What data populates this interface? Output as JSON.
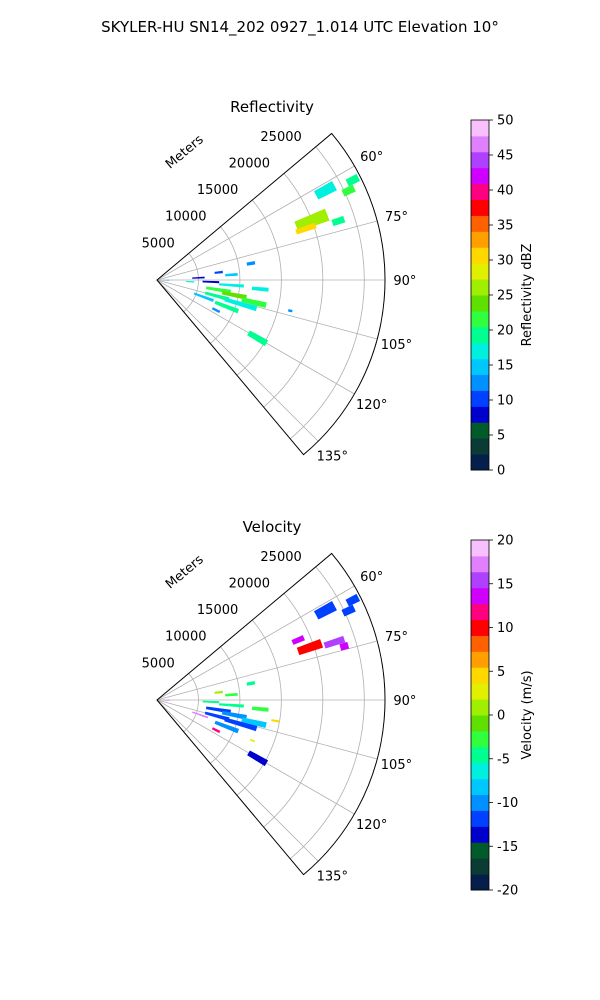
{
  "figure_title": "SKYLER-HU  SN14_202  0927_1.014 UTC Elevation 10°",
  "chart_data": [
    {
      "type": "heatmap",
      "subtype": "polar-sector-radar-ppi",
      "title": "Reflectivity",
      "radial_axis_label": "Meters",
      "radial_ticks": [
        5000,
        10000,
        15000,
        20000,
        25000
      ],
      "radial_tick_labels": [
        "5000",
        "10000",
        "15000",
        "20000",
        "25000"
      ],
      "rmax": 27500,
      "azimuth_range": [
        50,
        140
      ],
      "azimuth_ticks": [
        60,
        75,
        90,
        105,
        120,
        135
      ],
      "azimuth_tick_labels": [
        "60°",
        "75°",
        "90°",
        "105°",
        "120°",
        "135°"
      ],
      "grid": true,
      "colorbar": {
        "label": "Reflectivity dBZ",
        "min": 0,
        "max": 50,
        "ticks": [
          0,
          5,
          10,
          15,
          20,
          25,
          30,
          35,
          40,
          45,
          50
        ],
        "colors": [
          "#04204a",
          "#0a3b35",
          "#005a2a",
          "#0000cc",
          "#0040ff",
          "#0090ff",
          "#00c8ff",
          "#00f0e0",
          "#00ff90",
          "#30ff40",
          "#60e000",
          "#a0ee00",
          "#e0f000",
          "#ffd800",
          "#ffa000",
          "#ff6000",
          "#ff0000",
          "#ff0080",
          "#d000ff",
          "#b040ff",
          "#e080ff",
          "#f8c0ff"
        ]
      },
      "echo_cells": [
        {
          "az": 62,
          "r": 23000,
          "dz": 2500,
          "daz": 3,
          "value": 18
        },
        {
          "az": 63,
          "r": 26500,
          "dz": 1500,
          "daz": 2,
          "value": 20
        },
        {
          "az": 65,
          "r": 25500,
          "dz": 1500,
          "daz": 2,
          "value": 22
        },
        {
          "az": 69,
          "r": 20000,
          "dz": 4000,
          "daz": 4,
          "value": 25
        },
        {
          "az": 71,
          "r": 19000,
          "dz": 2500,
          "daz": 2,
          "value": 30
        },
        {
          "az": 72,
          "r": 23000,
          "dz": 1500,
          "daz": 2,
          "value": 20
        },
        {
          "az": 80,
          "r": 11500,
          "dz": 1000,
          "daz": 2,
          "value": 12
        },
        {
          "az": 83,
          "r": 7500,
          "dz": 1000,
          "daz": 2,
          "value": 10
        },
        {
          "az": 86,
          "r": 9000,
          "dz": 1500,
          "daz": 2,
          "value": 14
        },
        {
          "az": 87,
          "r": 5000,
          "dz": 1500,
          "daz": 2,
          "value": 8
        },
        {
          "az": 91,
          "r": 1000,
          "dz": 1000,
          "daz": 3,
          "value": 12
        },
        {
          "az": 92,
          "r": 6500,
          "dz": 2000,
          "daz": 2,
          "value": 8
        },
        {
          "az": 93,
          "r": 4000,
          "dz": 1000,
          "daz": 2,
          "value": 18
        },
        {
          "az": 94,
          "r": 9000,
          "dz": 3000,
          "daz": 2,
          "value": 17
        },
        {
          "az": 95,
          "r": 12500,
          "dz": 2000,
          "daz": 2,
          "value": 18
        },
        {
          "az": 99,
          "r": 7500,
          "dz": 3000,
          "daz": 3,
          "value": 22
        },
        {
          "az": 101,
          "r": 9500,
          "dz": 3000,
          "daz": 3,
          "value": 24
        },
        {
          "az": 103,
          "r": 12000,
          "dz": 3000,
          "daz": 3,
          "value": 22
        },
        {
          "az": 105,
          "r": 7500,
          "dz": 3000,
          "daz": 3,
          "value": 20
        },
        {
          "az": 106,
          "r": 10500,
          "dz": 4000,
          "daz": 3,
          "value": 18
        },
        {
          "az": 110,
          "r": 6000,
          "dz": 2500,
          "daz": 3,
          "value": 15
        },
        {
          "az": 111,
          "r": 9000,
          "dz": 3000,
          "daz": 3,
          "value": 20
        },
        {
          "az": 117,
          "r": 8000,
          "dz": 1000,
          "daz": 2,
          "value": 12
        },
        {
          "az": 120,
          "r": 14000,
          "dz": 2500,
          "daz": 3,
          "value": 20
        },
        {
          "az": 103,
          "r": 16500,
          "dz": 500,
          "daz": 1,
          "value": 12
        }
      ]
    },
    {
      "type": "heatmap",
      "subtype": "polar-sector-radar-ppi",
      "title": "Velocity",
      "radial_axis_label": "Meters",
      "radial_ticks": [
        5000,
        10000,
        15000,
        20000,
        25000
      ],
      "radial_tick_labels": [
        "5000",
        "10000",
        "15000",
        "20000",
        "25000"
      ],
      "rmax": 27500,
      "azimuth_range": [
        50,
        140
      ],
      "azimuth_ticks": [
        60,
        75,
        90,
        105,
        120,
        135
      ],
      "azimuth_tick_labels": [
        "60°",
        "75°",
        "90°",
        "105°",
        "120°",
        "135°"
      ],
      "grid": true,
      "colorbar": {
        "label": "Velocity (m/s)",
        "min": -20,
        "max": 20,
        "ticks": [
          -20,
          -15,
          -10,
          -5,
          0,
          5,
          10,
          15,
          20
        ],
        "colors": [
          "#04204a",
          "#0a3b35",
          "#005a2a",
          "#0000cc",
          "#0040ff",
          "#0090ff",
          "#00c8ff",
          "#00f0e0",
          "#00ff90",
          "#30ff40",
          "#60e000",
          "#a0ee00",
          "#e0f000",
          "#ffd800",
          "#ffa000",
          "#ff6000",
          "#ff0000",
          "#ff0080",
          "#d000ff",
          "#b040ff",
          "#e080ff",
          "#f8c0ff"
        ]
      },
      "echo_cells": [
        {
          "az": 62,
          "r": 23000,
          "dz": 2500,
          "daz": 3,
          "value": -12
        },
        {
          "az": 63,
          "r": 26500,
          "dz": 1500,
          "daz": 2,
          "value": -11
        },
        {
          "az": 65,
          "r": 25500,
          "dz": 1500,
          "daz": 2,
          "value": -12
        },
        {
          "az": 67,
          "r": 18500,
          "dz": 1500,
          "daz": 2,
          "value": 14
        },
        {
          "az": 71,
          "r": 19500,
          "dz": 3000,
          "daz": 3,
          "value": 10
        },
        {
          "az": 72,
          "r": 22500,
          "dz": 2500,
          "daz": 2,
          "value": 15
        },
        {
          "az": 74,
          "r": 23500,
          "dz": 1000,
          "daz": 2,
          "value": 14
        },
        {
          "az": 80,
          "r": 11500,
          "dz": 1000,
          "daz": 2,
          "value": -4
        },
        {
          "az": 83,
          "r": 7500,
          "dz": 1000,
          "daz": 2,
          "value": 1
        },
        {
          "az": 86,
          "r": 9000,
          "dz": 1500,
          "daz": 2,
          "value": -3
        },
        {
          "az": 91,
          "r": 1000,
          "dz": 1000,
          "daz": 3,
          "value": 15
        },
        {
          "az": 92,
          "r": 6500,
          "dz": 2000,
          "daz": 2,
          "value": -4
        },
        {
          "az": 94,
          "r": 9000,
          "dz": 3000,
          "daz": 2,
          "value": -4
        },
        {
          "az": 95,
          "r": 12500,
          "dz": 2000,
          "daz": 2,
          "value": -3
        },
        {
          "az": 99,
          "r": 7500,
          "dz": 3000,
          "daz": 3,
          "value": -11
        },
        {
          "az": 101,
          "r": 9500,
          "dz": 3000,
          "daz": 3,
          "value": -10
        },
        {
          "az": 103,
          "r": 12000,
          "dz": 3000,
          "daz": 3,
          "value": -8
        },
        {
          "az": 105,
          "r": 7500,
          "dz": 3000,
          "daz": 3,
          "value": -12
        },
        {
          "az": 106,
          "r": 10500,
          "dz": 4000,
          "daz": 3,
          "value": -11
        },
        {
          "az": 109,
          "r": 5500,
          "dz": 2000,
          "daz": 2,
          "value": 17
        },
        {
          "az": 111,
          "r": 9000,
          "dz": 3000,
          "daz": 3,
          "value": -10
        },
        {
          "az": 100,
          "r": 14500,
          "dz": 1000,
          "daz": 1,
          "value": 4
        },
        {
          "az": 117,
          "r": 8000,
          "dz": 1000,
          "daz": 2,
          "value": 12
        },
        {
          "az": 120,
          "r": 14000,
          "dz": 2500,
          "daz": 3,
          "value": -13
        },
        {
          "az": 113,
          "r": 12500,
          "dz": 600,
          "daz": 1,
          "value": 3
        }
      ]
    }
  ]
}
